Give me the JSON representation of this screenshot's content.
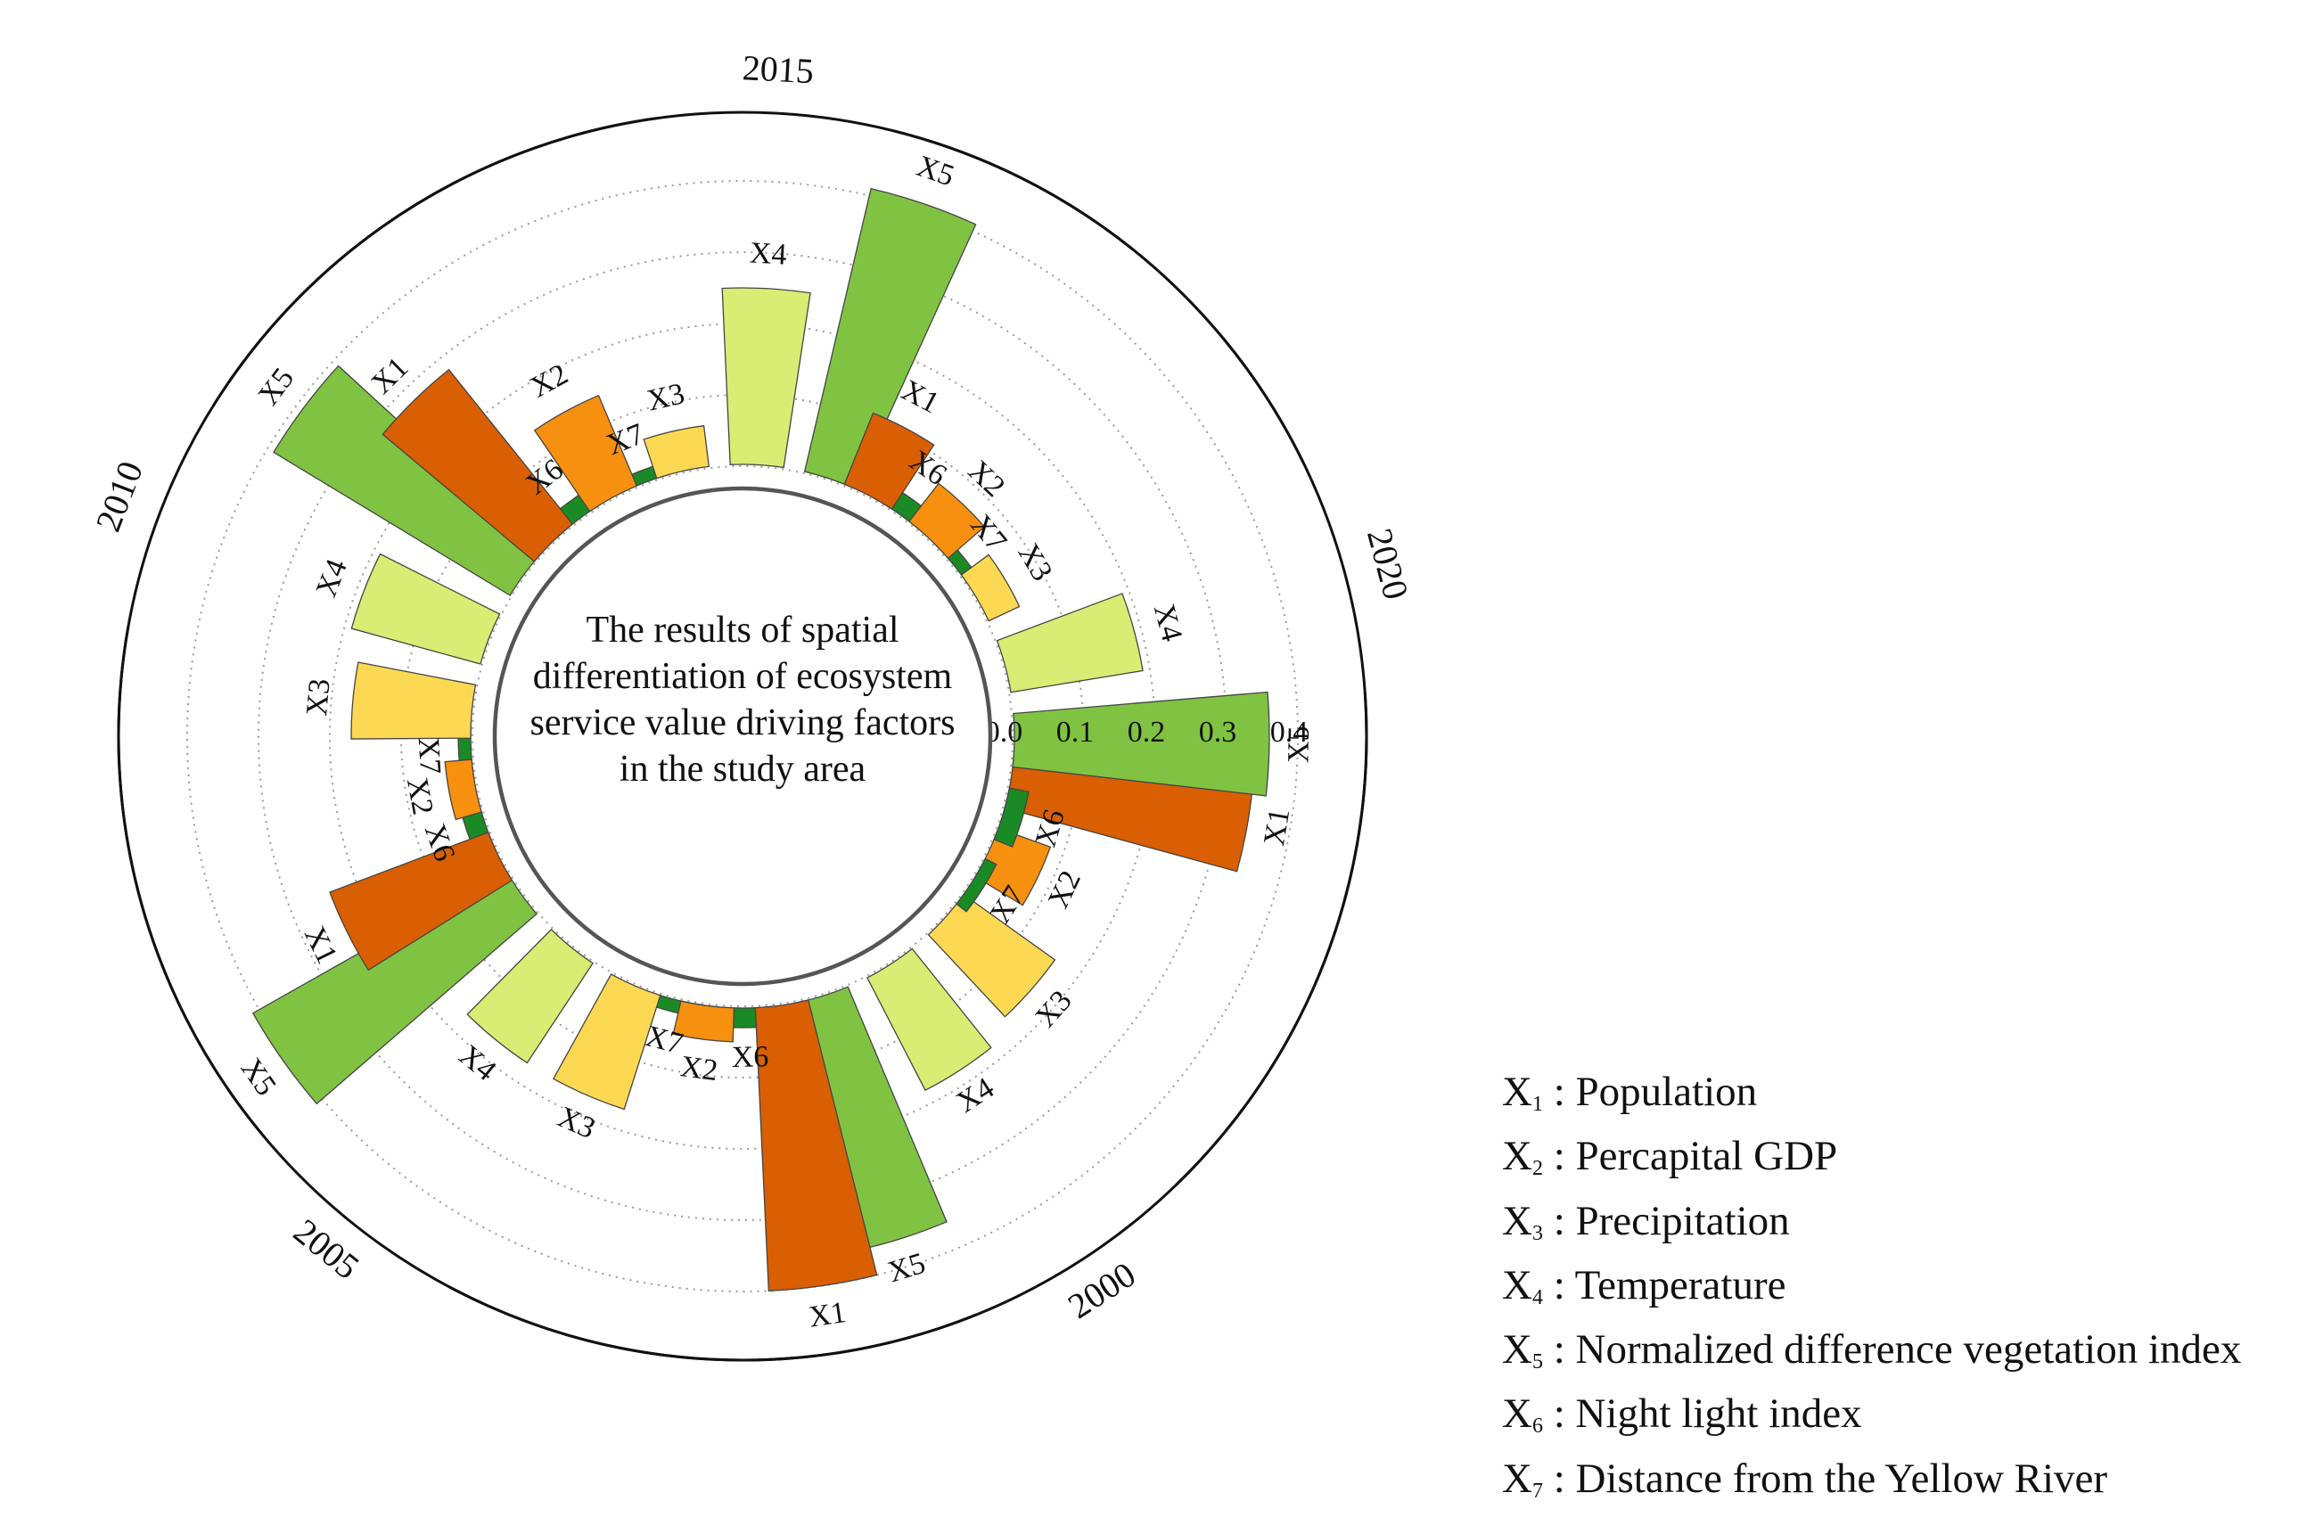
{
  "chart_data": {
    "type": "radial-bar",
    "title": "The results of spatial differentiation of ecosystem service value driving factors in the study area",
    "title_lines": [
      "The results of spatial",
      "differentiation of ecosystem",
      "service value driving factors",
      "in the study area"
    ],
    "radial_ticks": [
      "0.0",
      "0.1",
      "0.2",
      "0.3",
      "0.4"
    ],
    "radial_range": [
      0,
      0.4
    ],
    "grid": "dotted concentric rings",
    "factors": [
      "X1",
      "X2",
      "X3",
      "X4",
      "X5",
      "X6",
      "X7"
    ],
    "colors": {
      "X1": "#d95f02",
      "X2": "#f7900f",
      "X3": "#fdd853",
      "X4": "#d9ec73",
      "X5": "#80c342",
      "X6": "#1a8a24",
      "X7": "#1a8a24"
    },
    "series": [
      {
        "name": "2000",
        "values": [
          0.34,
          0.08,
          0.16,
          0.18,
          0.36,
          0.03,
          0.02
        ]
      },
      {
        "name": "2005",
        "values": [
          0.4,
          0.05,
          0.17,
          0.17,
          0.41,
          0.03,
          0.02
        ]
      },
      {
        "name": "2010",
        "values": [
          0.24,
          0.04,
          0.17,
          0.19,
          0.39,
          0.03,
          0.02
        ]
      },
      {
        "name": "2015",
        "values": [
          0.28,
          0.14,
          0.06,
          0.25,
          0.41,
          0.03,
          0.02
        ]
      },
      {
        "name": "2020",
        "values": [
          0.11,
          0.07,
          0.05,
          0.19,
          0.36,
          0.03,
          0.02
        ]
      }
    ]
  },
  "legend": [
    {
      "sym": "X",
      "sub": "1",
      "text": " : Population"
    },
    {
      "sym": "X",
      "sub": "2",
      "text": " : Percapital GDP"
    },
    {
      "sym": "X",
      "sub": "3",
      "text": " : Precipitation"
    },
    {
      "sym": "X",
      "sub": "4",
      "text": " : Temperature"
    },
    {
      "sym": "X",
      "sub": "5",
      "text": " : Normalized difference vegetation index"
    },
    {
      "sym": "X",
      "sub": "6",
      "text": " : Night light index"
    },
    {
      "sym": "X",
      "sub": "7",
      "text": " : Distance from the Yellow River"
    }
  ]
}
